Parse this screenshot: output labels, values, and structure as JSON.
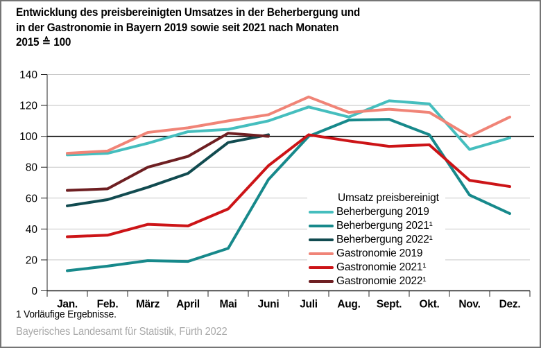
{
  "title": {
    "line1": "Entwicklung des preisbereinigten Umsatzes in der Beherbergung und",
    "line2": "in der Gastronomie in Bayern 2019 sowie seit 2021 nach Monaten",
    "line3": "2015 ≙ 100"
  },
  "chart_data": {
    "type": "line",
    "title": "Entwicklung des preisbereinigten Umsatzes in der Beherbergung und in der Gastronomie in Bayern 2019 sowie seit 2021 nach Monaten",
    "subtitle": "2015 ≙ 100",
    "categories": [
      "Jan.",
      "Feb.",
      "März",
      "April",
      "Mai",
      "Juni",
      "Juli",
      "Aug.",
      "Sept.",
      "Okt.",
      "Nov.",
      "Dez."
    ],
    "ylim": [
      0,
      140
    ],
    "ytick_step": 20,
    "reference_line": 100,
    "grid": true,
    "legend_title": "Umsatz preisbereinigt",
    "legend_position": "inside-bottom-right",
    "series": [
      {
        "name": "Beherbergung 2019",
        "color": "#45BEBE",
        "values": [
          88,
          89,
          95.5,
          103,
          104.5,
          110,
          119,
          112.5,
          123,
          121,
          91.5,
          99
        ]
      },
      {
        "name": "Beherbergung 2021¹",
        "color": "#17898B",
        "values": [
          13,
          16,
          19.5,
          19,
          27.5,
          72,
          100,
          110.5,
          111,
          101,
          62,
          50
        ]
      },
      {
        "name": "Beherbergung 2022¹",
        "color": "#114B50",
        "values": [
          55,
          59,
          67,
          76,
          96,
          101,
          null,
          null,
          null,
          null,
          null,
          null
        ]
      },
      {
        "name": "Gastronomie 2019",
        "color": "#F08477",
        "values": [
          89,
          90.5,
          102.5,
          105.5,
          110,
          114,
          125.5,
          115.5,
          117.5,
          115.5,
          100,
          112.5
        ]
      },
      {
        "name": "Gastronomie 2021¹",
        "color": "#CC1417",
        "values": [
          35,
          36,
          43,
          42,
          53,
          81,
          101,
          97,
          93.5,
          94.5,
          71.5,
          67.5
        ]
      },
      {
        "name": "Gastronomie 2022¹",
        "color": "#6E1F22",
        "values": [
          65,
          66,
          80,
          87,
          102,
          100,
          null,
          null,
          null,
          null,
          null,
          null
        ]
      }
    ],
    "footnote": "1 Vorläufige Ergebnisse.",
    "source": "Bayerisches Landesamt für Statistik, Fürth 2022"
  },
  "footer": {
    "footnote": "1 Vorläufige Ergebnisse.",
    "source": "Bayerisches Landesamt für Statistik, Fürth 2022"
  }
}
